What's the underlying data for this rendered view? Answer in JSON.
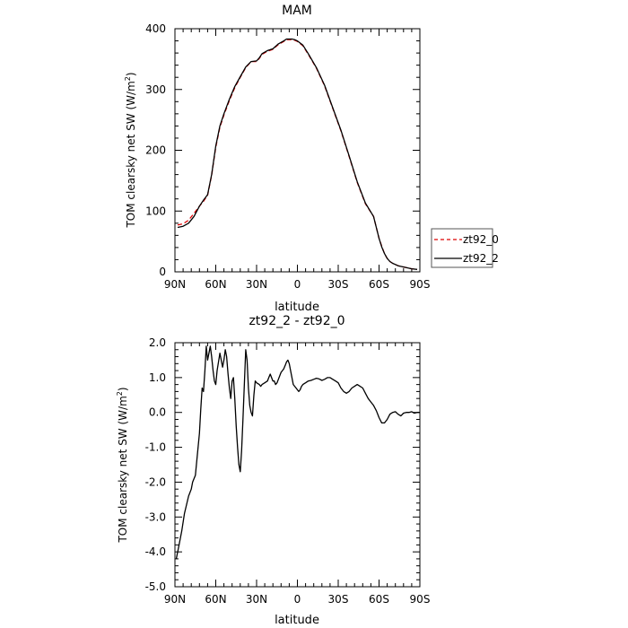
{
  "chart_data": [
    {
      "type": "line",
      "title": "MAM",
      "xlabel": "latitude",
      "ylabel_main": "TOM clearsky net SW (W/m",
      "ylabel_sup": "2",
      "ylabel_close": ")",
      "xlim": [
        90,
        -90
      ],
      "ylim": [
        0,
        400
      ],
      "x_ticks": [
        90,
        60,
        30,
        0,
        -30,
        -60,
        -90
      ],
      "x_tick_labels": [
        "90N",
        "60N",
        "30N",
        "0",
        "30S",
        "60S",
        "90S"
      ],
      "y_ticks": [
        0,
        100,
        200,
        300,
        400
      ],
      "y_tick_labels": [
        "0",
        "100",
        "200",
        "300",
        "400"
      ],
      "legend": {
        "placement": "right",
        "entries": [
          "zt92_0",
          "zt92_2"
        ]
      },
      "series": [
        {
          "name": "zt92_0",
          "color": "#dd0000",
          "dash": "dashed",
          "x": [
            88,
            84,
            80,
            76,
            72,
            69,
            66,
            63,
            60,
            57,
            54,
            50,
            46,
            42,
            38,
            34,
            30,
            28,
            26,
            22,
            18,
            14,
            10,
            8,
            6,
            4,
            2,
            0,
            -4,
            -8,
            -14,
            -20,
            -26,
            -32,
            -38,
            -44,
            -50,
            -56,
            -60,
            -62,
            -64,
            -66,
            -68,
            -70,
            -74,
            -80,
            -84,
            -88
          ],
          "y": [
            77,
            79,
            85,
            96,
            108,
            116,
            126,
            159,
            205,
            238,
            258,
            282,
            303,
            320,
            336,
            346,
            346,
            351,
            358,
            363,
            366,
            374,
            379,
            382,
            382,
            382,
            381,
            379,
            372,
            358,
            335,
            306,
            269,
            232,
            190,
            147,
            112,
            91,
            55,
            42,
            30,
            22,
            17,
            14,
            10,
            7,
            5,
            4
          ]
        },
        {
          "name": "zt92_2",
          "color": "#000000",
          "dash": "solid",
          "x": [
            88,
            84,
            80,
            76,
            72,
            69,
            66,
            63,
            60,
            57,
            54,
            50,
            46,
            42,
            38,
            34,
            30,
            28,
            26,
            22,
            18,
            14,
            10,
            8,
            6,
            4,
            2,
            0,
            -4,
            -8,
            -14,
            -20,
            -26,
            -32,
            -38,
            -44,
            -50,
            -56,
            -60,
            -62,
            -64,
            -66,
            -68,
            -70,
            -74,
            -80,
            -84,
            -88
          ],
          "y": [
            73,
            75,
            80,
            91,
            108,
            118,
            127,
            160,
            207,
            240,
            260,
            284,
            305,
            321,
            337,
            346,
            347,
            352,
            359,
            364,
            367,
            375,
            380,
            383,
            383,
            383,
            382,
            380,
            373,
            359,
            336,
            307,
            270,
            233,
            191,
            148,
            113,
            91,
            55,
            41,
            30,
            22,
            17,
            14,
            10,
            7,
            5,
            4
          ]
        }
      ]
    },
    {
      "type": "line",
      "title": "zt92_2 - zt92_0",
      "xlabel": "latitude",
      "ylabel_main": "TOM clearsky net SW (W/m",
      "ylabel_sup": "2",
      "ylabel_close": ")",
      "xlim": [
        90,
        -90
      ],
      "ylim": [
        -5,
        2
      ],
      "x_ticks": [
        90,
        60,
        30,
        0,
        -30,
        -60,
        -90
      ],
      "x_tick_labels": [
        "90N",
        "60N",
        "30N",
        "0",
        "30S",
        "60S",
        "90S"
      ],
      "y_ticks": [
        -5,
        -4,
        -3,
        -2,
        -1,
        0,
        1,
        2
      ],
      "y_tick_labels": [
        "-5.0",
        "-4.0",
        "-3.0",
        "-2.0",
        "-1.0",
        "0.0",
        "1.0",
        "2.0"
      ],
      "series": [
        {
          "name": "",
          "color": "#000000",
          "dash": "solid",
          "x": [
            89,
            87,
            85,
            83,
            80,
            78,
            77,
            75,
            74,
            73,
            72,
            71,
            70,
            69,
            68,
            67,
            66,
            64,
            63,
            62,
            61,
            60,
            59,
            57,
            56,
            55,
            54,
            53,
            52,
            51,
            50,
            49,
            48,
            47,
            46,
            45,
            44,
            43,
            42,
            41,
            40,
            38,
            37,
            36,
            35,
            34,
            33,
            32,
            31,
            30,
            28,
            27,
            26,
            24,
            22,
            21,
            20,
            19,
            18,
            17,
            16,
            15,
            14,
            13,
            12,
            11,
            10,
            9,
            8,
            7,
            6,
            5,
            4,
            3,
            2,
            1,
            0,
            -1,
            -2,
            -3,
            -4,
            -6,
            -8,
            -10,
            -12,
            -14,
            -16,
            -18,
            -20,
            -22,
            -24,
            -26,
            -28,
            -30,
            -32,
            -34,
            -36,
            -38,
            -40,
            -42,
            -44,
            -46,
            -48,
            -50,
            -52,
            -54,
            -56,
            -58,
            -60,
            -62,
            -64,
            -66,
            -68,
            -70,
            -72,
            -74,
            -76,
            -78,
            -80,
            -82,
            -84,
            -86,
            -88,
            -90
          ],
          "y": [
            -4.2,
            -3.8,
            -3.4,
            -2.9,
            -2.4,
            -2.2,
            -2.0,
            -1.8,
            -1.4,
            -1.0,
            -0.6,
            0.1,
            0.7,
            0.6,
            1.2,
            1.9,
            1.5,
            1.9,
            1.6,
            1.2,
            0.9,
            0.8,
            1.2,
            1.7,
            1.5,
            1.3,
            1.5,
            1.8,
            1.6,
            1.1,
            0.7,
            0.4,
            0.9,
            1.0,
            0.4,
            -0.4,
            -1.0,
            -1.5,
            -1.7,
            -1.1,
            -0.2,
            1.8,
            1.5,
            0.7,
            0.2,
            0.0,
            -0.1,
            0.5,
            0.9,
            0.85,
            0.8,
            0.75,
            0.8,
            0.85,
            0.9,
            1.0,
            1.1,
            1.0,
            0.9,
            0.9,
            0.8,
            0.85,
            0.95,
            1.05,
            1.15,
            1.2,
            1.25,
            1.35,
            1.45,
            1.5,
            1.4,
            1.2,
            1.0,
            0.8,
            0.75,
            0.7,
            0.65,
            0.6,
            0.65,
            0.75,
            0.8,
            0.85,
            0.9,
            0.92,
            0.95,
            0.98,
            0.96,
            0.92,
            0.95,
            1.0,
            1.0,
            0.95,
            0.9,
            0.85,
            0.7,
            0.6,
            0.55,
            0.6,
            0.7,
            0.75,
            0.8,
            0.75,
            0.7,
            0.55,
            0.4,
            0.3,
            0.2,
            0.05,
            -0.15,
            -0.3,
            -0.3,
            -0.2,
            -0.05,
            0.0,
            0.02,
            -0.05,
            -0.1,
            -0.02,
            0.0,
            0.0,
            0.02,
            -0.02,
            0.0,
            0.0
          ]
        }
      ]
    }
  ]
}
